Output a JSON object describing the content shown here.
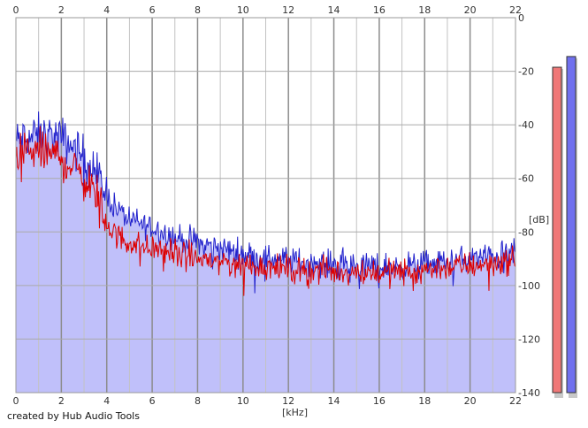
{
  "credit": "created by Hub Audio Tools",
  "chart_data": {
    "type": "line",
    "xlabel": "[kHz]",
    "ylabel": "[dB]",
    "xlim": [
      0,
      22
    ],
    "ylim": [
      -140,
      0
    ],
    "x_ticks": [
      "0",
      "2",
      "4",
      "6",
      "8",
      "10",
      "12",
      "14",
      "16",
      "18",
      "20",
      "22"
    ],
    "y_ticks": [
      "0",
      "-20",
      "-40",
      "-60",
      "-80",
      "-100",
      "-120",
      "-140"
    ],
    "grid": true,
    "fill_color": "#c0c0fa",
    "series": [
      {
        "color": "#2222cc",
        "x": [
          0,
          0.5,
          1,
          1.5,
          2,
          2.5,
          3,
          3.5,
          4,
          4.5,
          5,
          5.5,
          6,
          6.5,
          7,
          7.5,
          8,
          8.5,
          9,
          9.5,
          10,
          10.5,
          11,
          11.5,
          12,
          12.5,
          13,
          13.5,
          14,
          14.5,
          15,
          15.5,
          16,
          16.5,
          17,
          17.5,
          18,
          18.5,
          19,
          19.5,
          20,
          20.5,
          21,
          21.5,
          22
        ],
        "y": [
          -46,
          -45,
          -44,
          -44,
          -45,
          -48,
          -52,
          -57,
          -66,
          -72,
          -75,
          -77,
          -78,
          -80,
          -82,
          -83,
          -84,
          -85,
          -86,
          -87,
          -88,
          -89,
          -89.5,
          -90,
          -90.5,
          -91,
          -91.5,
          -92,
          -92,
          -92,
          -92.5,
          -92.5,
          -93,
          -93,
          -93,
          -92.5,
          -92,
          -91.5,
          -91,
          -90.5,
          -90,
          -89.5,
          -89,
          -88.5,
          -88
        ]
      },
      {
        "color": "#dd0000",
        "x": [
          0,
          0.5,
          1,
          1.5,
          2,
          2.5,
          3,
          3.5,
          4,
          4.5,
          5,
          5.5,
          6,
          6.5,
          7,
          7.5,
          8,
          8.5,
          9,
          9.5,
          10,
          10.5,
          11,
          11.5,
          12,
          12.5,
          13,
          13.5,
          14,
          14.5,
          15,
          15.5,
          16,
          16.5,
          17,
          17.5,
          18,
          18.5,
          19,
          19.5,
          20,
          20.5,
          21,
          21.5,
          22
        ],
        "y": [
          -52,
          -50,
          -50,
          -51,
          -52,
          -56,
          -60,
          -65,
          -77,
          -82,
          -84,
          -85,
          -86,
          -87,
          -88,
          -89,
          -90,
          -90.5,
          -91,
          -91.5,
          -92,
          -92.5,
          -93,
          -93.5,
          -94,
          -94,
          -94.5,
          -94.5,
          -95,
          -95,
          -95,
          -95,
          -95,
          -95,
          -95,
          -94.5,
          -94,
          -93.5,
          -93,
          -93,
          -92.5,
          -92,
          -91.5,
          -91,
          -91
        ]
      }
    ],
    "level_meters": [
      {
        "color": "#f07878",
        "value_db": -18.5
      },
      {
        "color": "#7070ee",
        "value_db": -14.5
      }
    ]
  }
}
